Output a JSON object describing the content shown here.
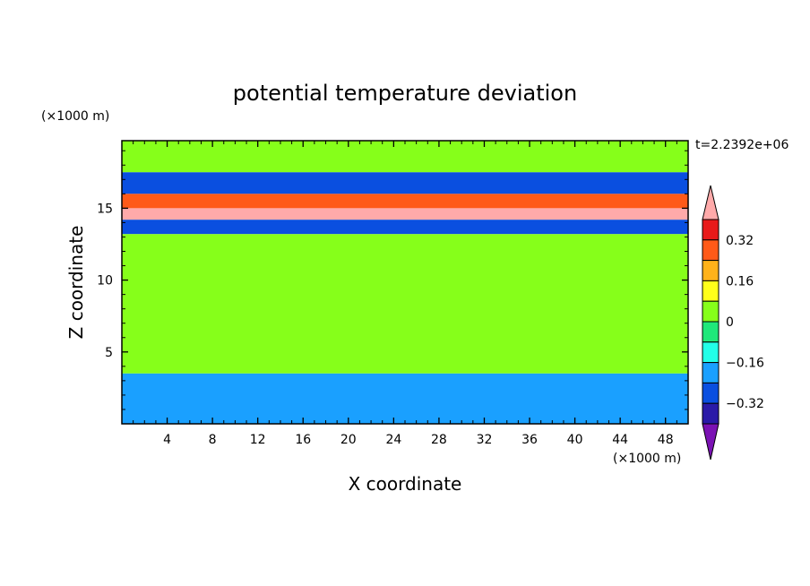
{
  "chart_data": {
    "type": "heatmap",
    "title": "potential temperature deviation",
    "xlabel": "X coordinate",
    "ylabel": "Z coordinate",
    "x_unit": "(×1000 m)",
    "y_unit": "(×1000 m)",
    "time_label": "t=2.2392e+06",
    "xlim": [
      0,
      50
    ],
    "ylim": [
      0,
      19.7
    ],
    "x_ticks": [
      "4",
      "8",
      "12",
      "16",
      "20",
      "24",
      "28",
      "32",
      "36",
      "40",
      "44",
      "48"
    ],
    "y_ticks": [
      "5",
      "10",
      "15"
    ],
    "x_tick_values": [
      4,
      8,
      12,
      16,
      20,
      24,
      28,
      32,
      36,
      40,
      44,
      48
    ],
    "y_tick_values": [
      5,
      10,
      15
    ],
    "colorbar": {
      "labels": [
        "0.32",
        "0.16",
        "0",
        "−0.16",
        "−0.32"
      ],
      "label_values": [
        0.32,
        0.16,
        0,
        -0.16,
        -0.32
      ],
      "levels": [
        -0.4,
        -0.32,
        -0.24,
        -0.16,
        -0.08,
        0,
        0.08,
        0.16,
        0.24,
        0.32,
        0.4
      ],
      "colors": [
        "#7b12b4",
        "#2a1aa8",
        "#0a4fe0",
        "#1aa0ff",
        "#22ffe8",
        "#1fe87a",
        "#86ff1a",
        "#ffff1a",
        "#ffb21a",
        "#ff5a18",
        "#e81a1a",
        "#ffaaaa"
      ]
    },
    "layers": [
      {
        "z": [
          17.5,
          19.7
        ],
        "value": 0.04
      },
      {
        "z": [
          16.0,
          17.5
        ],
        "value": -0.3
      },
      {
        "z": [
          15.0,
          16.0
        ],
        "value": 0.3
      },
      {
        "z": [
          14.2,
          15.0
        ],
        "value": 0.42
      },
      {
        "z": [
          13.2,
          14.2
        ],
        "value": -0.3
      },
      {
        "z": [
          3.5,
          13.2
        ],
        "value": 0.0
      },
      {
        "z": [
          0,
          3.5
        ],
        "value": -0.2
      }
    ]
  }
}
